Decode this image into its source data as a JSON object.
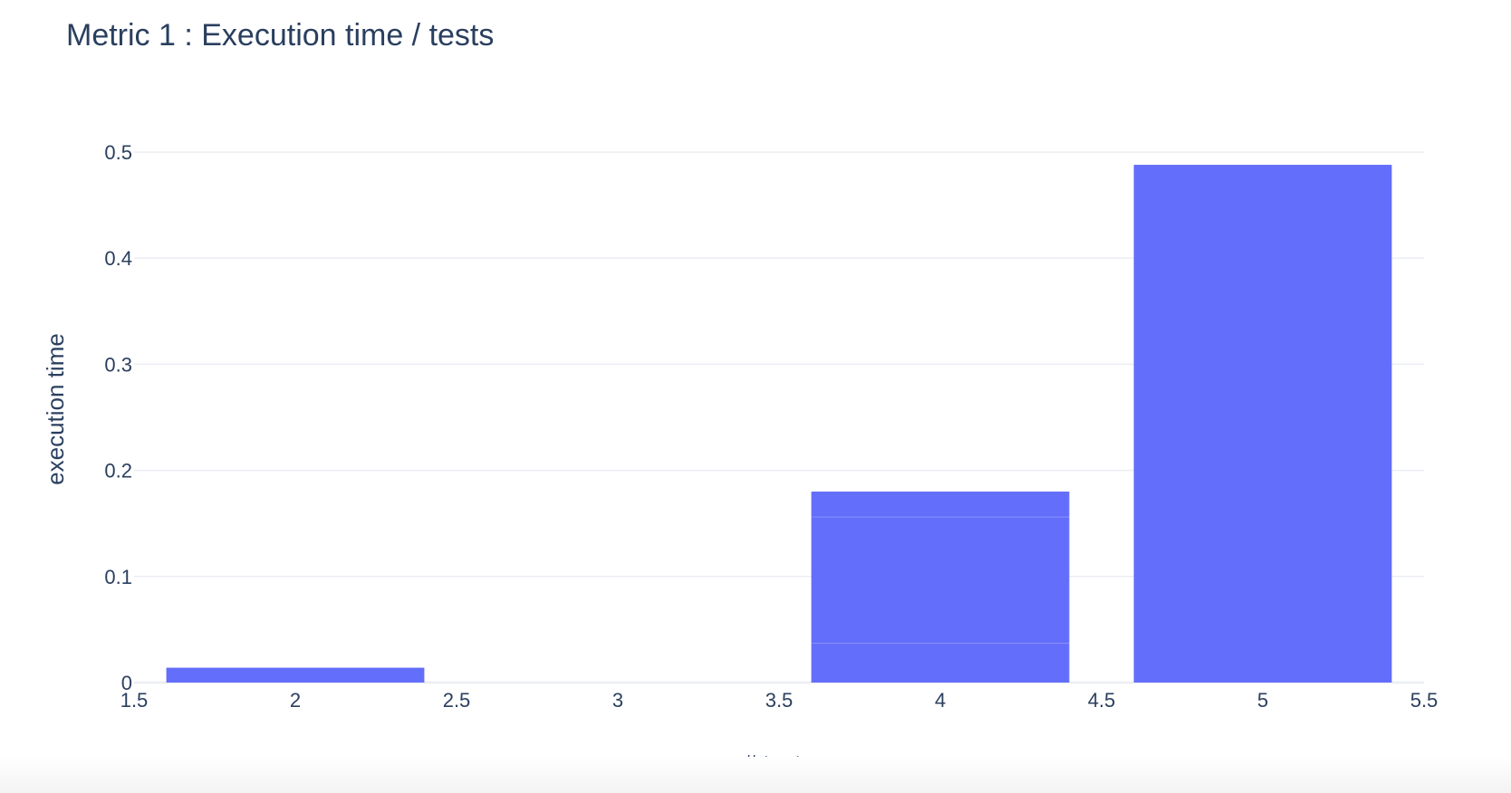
{
  "chart_data": {
    "type": "bar",
    "title": "Metric 1 : Execution time / tests",
    "xlabel": "# tests",
    "ylabel": "execution time",
    "x": [
      2,
      4,
      5
    ],
    "values": [
      0.014,
      0.18,
      0.488
    ],
    "segment_boundaries": [
      {
        "x": 4,
        "levels": [
          0.037,
          0.156
        ]
      }
    ],
    "xlim": [
      1.5,
      5.5
    ],
    "ylim": [
      0,
      0.52
    ],
    "x_ticks": [
      1.5,
      2,
      2.5,
      3,
      3.5,
      4,
      4.5,
      5,
      5.5
    ],
    "x_tick_labels": [
      "1.5",
      "2",
      "2.5",
      "3",
      "3.5",
      "4",
      "4.5",
      "5",
      "5.5"
    ],
    "y_ticks": [
      0,
      0.1,
      0.2,
      0.3,
      0.4,
      0.5
    ],
    "y_tick_labels": [
      "0",
      "0.1",
      "0.2",
      "0.3",
      "0.4",
      "0.5"
    ],
    "bar_width": 0.8,
    "bar_color": "#636efa",
    "grid": true,
    "legend": "none"
  }
}
